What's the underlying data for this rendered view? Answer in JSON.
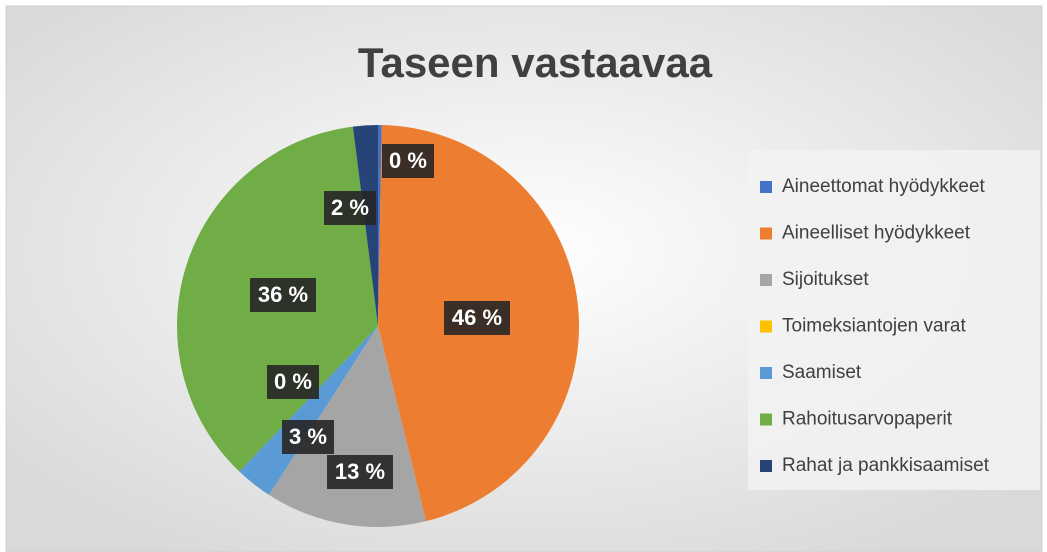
{
  "chart_data": {
    "type": "pie",
    "title": "Taseen vastaavaa",
    "categories": [
      "Aineettomat hyödykkeet",
      "Aineelliset hyödykkeet",
      "Sijoitukset",
      "Toimeksiantojen varat",
      "Saamiset",
      "Rahoitusarvopaperit",
      "Rahat ja pankkisaamiset"
    ],
    "values": [
      0.3,
      46,
      13,
      0,
      3,
      36,
      2
    ],
    "value_labels": [
      "0 %",
      "46 %",
      "13 %",
      "0 %",
      "3 %",
      "36 %",
      "2 %"
    ],
    "colors": [
      "#4472c4",
      "#ed7d31",
      "#a5a5a5",
      "#ffc000",
      "#5b9bd5",
      "#70ad47",
      "#264478"
    ],
    "legend": "right"
  }
}
